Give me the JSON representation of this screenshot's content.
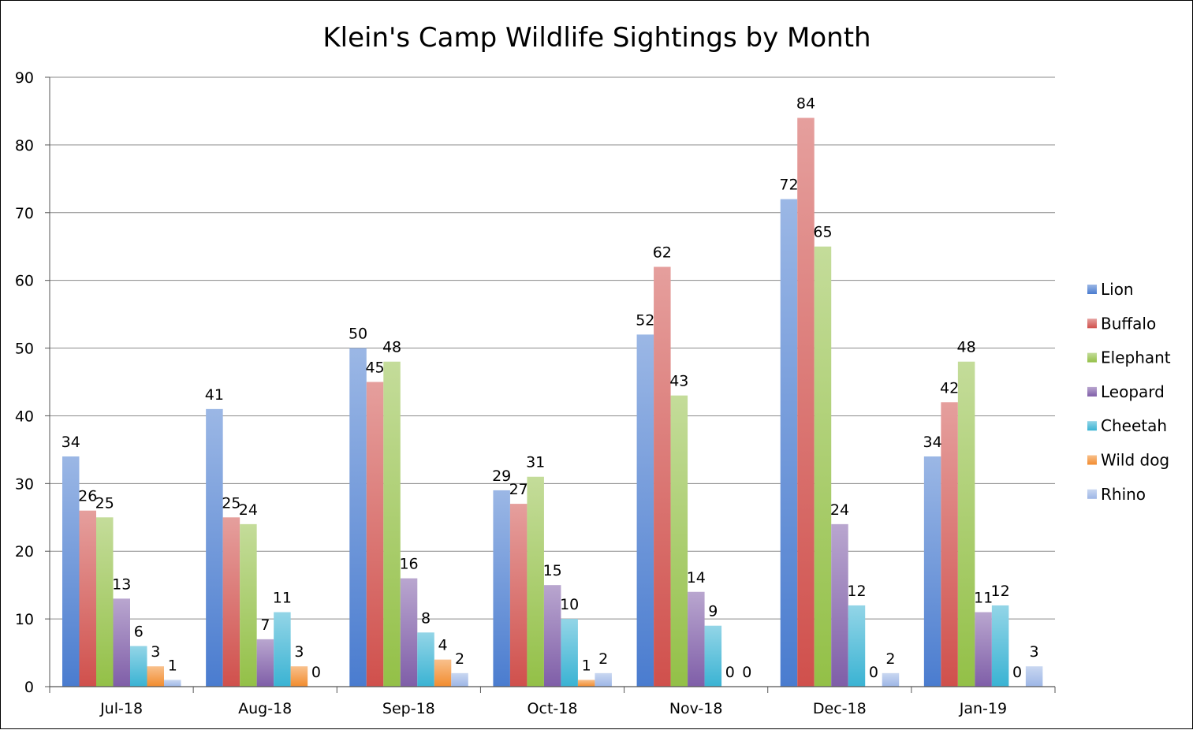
{
  "chart_data": {
    "type": "bar",
    "title": "Klein's Camp Wildlife Sightings by Month",
    "xlabel": "",
    "ylabel": "",
    "ylim": [
      0,
      90
    ],
    "yticks": [
      0,
      10,
      20,
      30,
      40,
      50,
      60,
      70,
      80,
      90
    ],
    "grid": true,
    "legend_position": "right",
    "categories": [
      "Jul-18",
      "Aug-18",
      "Sep-18",
      "Oct-18",
      "Nov-18",
      "Dec-18",
      "Jan-19"
    ],
    "series": [
      {
        "name": "Lion",
        "color": "#4a7ccf",
        "values": [
          34,
          41,
          50,
          29,
          52,
          72,
          34
        ]
      },
      {
        "name": "Buffalo",
        "color": "#d0504c",
        "values": [
          26,
          25,
          45,
          27,
          62,
          84,
          42
        ]
      },
      {
        "name": "Elephant",
        "color": "#93c047",
        "values": [
          25,
          24,
          48,
          31,
          43,
          65,
          48
        ]
      },
      {
        "name": "Leopard",
        "color": "#7f5ea8",
        "values": [
          13,
          7,
          16,
          15,
          14,
          24,
          11
        ]
      },
      {
        "name": "Cheetah",
        "color": "#3ab3d3",
        "values": [
          6,
          11,
          8,
          10,
          9,
          12,
          12
        ]
      },
      {
        "name": "Wild dog",
        "color": "#f28c2e",
        "values": [
          3,
          3,
          4,
          1,
          0,
          0,
          0
        ]
      },
      {
        "name": "Rhino",
        "color": "#9db6e6",
        "values": [
          1,
          0,
          2,
          2,
          0,
          2,
          3
        ]
      }
    ],
    "data_labels": [
      [
        "34",
        "26",
        "25",
        "13",
        "6",
        "3",
        "1"
      ],
      [
        "41",
        "25",
        "24",
        "7",
        "11",
        "3",
        "0"
      ],
      [
        "50",
        "45",
        "48",
        "16",
        "8",
        "4",
        "2"
      ],
      [
        "29",
        "27",
        "31",
        "15",
        "10",
        "1",
        "2"
      ],
      [
        "52",
        "62",
        "43",
        "14",
        "9",
        "0",
        "0"
      ],
      [
        "72",
        "84",
        "65",
        "24",
        "12",
        "0",
        "2"
      ],
      [
        "34",
        "42",
        "48",
        "11",
        "12",
        "0",
        "3"
      ]
    ]
  }
}
